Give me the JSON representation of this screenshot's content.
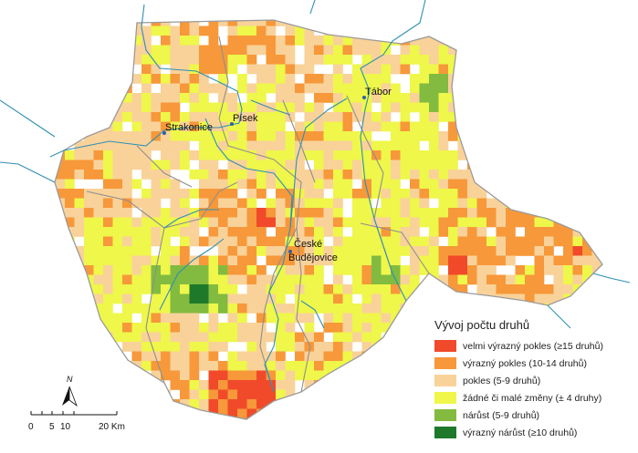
{
  "legend": {
    "title": "Vývoj počtu druhů",
    "items": [
      {
        "key": "very-strong-decline",
        "label": "velmi výrazný pokles (≥15 druhů)",
        "color": "#f04a2a"
      },
      {
        "key": "strong-decline",
        "label": "výrazný pokles (10-14 druhů)",
        "color": "#f7983a"
      },
      {
        "key": "decline",
        "label": "pokles (5-9 druhů)",
        "color": "#f9d29a"
      },
      {
        "key": "no-change",
        "label": "žádné či malé změny (± 4 druhy)",
        "color": "#eef74a"
      },
      {
        "key": "increase",
        "label": "nárůst (5-9 druhů)",
        "color": "#82bb40"
      },
      {
        "key": "strong-increase",
        "label": "výrazný nárůst (≥10 druhů)",
        "color": "#1e7a2a"
      }
    ]
  },
  "cities": [
    {
      "key": "tabor",
      "name": "Tábor"
    },
    {
      "key": "pisek",
      "name": "Písek"
    },
    {
      "key": "strakonice",
      "name": "Strakonice"
    },
    {
      "key": "ceske-budejovice",
      "name_line1": "České",
      "name_line2": "Budějovice"
    }
  ],
  "scale_bar": {
    "labels": [
      "0",
      "5",
      "10",
      "20 Km"
    ]
  },
  "north_arrow": {
    "label": "N"
  },
  "colors": {
    "river": "#2f8fb5",
    "border": "#9a9a9a",
    "background": "#ffffff"
  }
}
